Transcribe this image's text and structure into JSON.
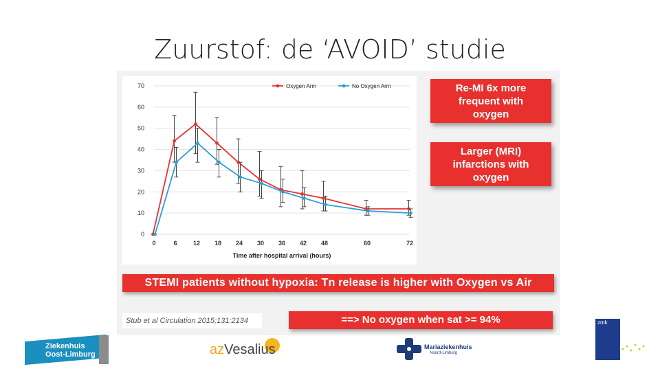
{
  "slide": {
    "title": "Zuurstof: de ‘AVOID’ studie"
  },
  "chart_data": {
    "type": "line",
    "title": "",
    "xlabel": "Time after hospital arrival (hours)",
    "ylabel": "",
    "x": [
      0,
      6,
      12,
      18,
      24,
      30,
      36,
      42,
      48,
      60,
      72
    ],
    "xlim": [
      0,
      72
    ],
    "ylim": [
      0,
      70
    ],
    "yticks": [
      0,
      10,
      20,
      30,
      40,
      50,
      60,
      70
    ],
    "legend_position": "top",
    "series": [
      {
        "name": "Oxygen Arm",
        "color": "#e8312e",
        "values": [
          0,
          44,
          52,
          43,
          34,
          26,
          21,
          19,
          17,
          12,
          12
        ],
        "error_low": [
          0,
          34,
          38,
          33,
          24,
          18,
          13,
          12,
          11,
          9,
          9
        ],
        "error_high": [
          0,
          56,
          67,
          55,
          45,
          39,
          32,
          30,
          25,
          16,
          16
        ]
      },
      {
        "name": "No Oxygen Arm",
        "color": "#2a9fd6",
        "values": [
          0,
          34,
          43,
          34,
          27,
          24,
          20,
          17,
          14,
          11,
          10
        ],
        "error_low": [
          0,
          27,
          34,
          27,
          20,
          17,
          15,
          13,
          11,
          9,
          8
        ],
        "error_high": [
          0,
          41,
          50,
          40,
          34,
          30,
          26,
          22,
          18,
          13,
          12
        ]
      }
    ]
  },
  "callouts": {
    "remi": [
      "Re-MI 6x more",
      "frequent with",
      "oxygen"
    ],
    "infarction": [
      "Larger (MRI)",
      "infarctions with",
      "oxygen"
    ]
  },
  "banner": "STEMI patients without hypoxia: Tn release is higher with Oxygen vs Air",
  "citation": "Stub et al Circulation 2015;131:2134",
  "conclusion": "==> No oxygen when sat >= 94%",
  "logos": {
    "zol": [
      "Ziekenhuis",
      "Oost-Limburg"
    ],
    "vesalius_prefix": "az",
    "vesalius_name": "Vesalius",
    "maria_name": "Mariaziekenhuis",
    "maria_sub": "Noord-Limburg",
    "zmk_label": "zmk"
  }
}
